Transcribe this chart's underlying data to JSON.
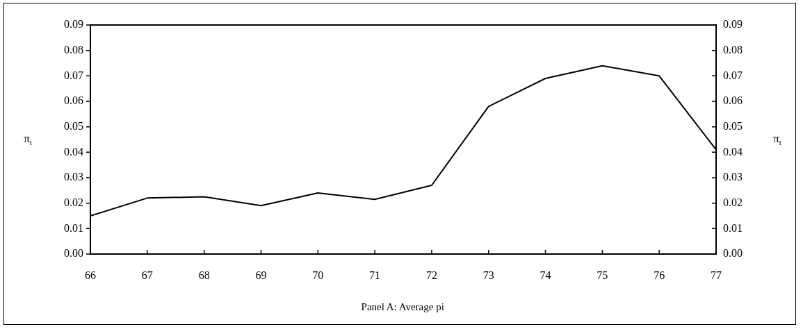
{
  "chart_data": {
    "type": "line",
    "xlabel": "Panel A: Average pi",
    "ylabel": "π$_{t}$",
    "y2label": "π$_{t}$",
    "x": [
      66,
      67,
      68,
      69,
      70,
      71,
      72,
      73,
      74,
      75,
      76,
      77
    ],
    "series": [
      {
        "color": "#000000",
        "values": [
          0.015,
          0.022,
          0.0225,
          0.019,
          0.024,
          0.0215,
          0.027,
          0.058,
          0.069,
          0.074,
          0.07,
          0.041
        ]
      }
    ],
    "xlim": [
      66,
      77
    ],
    "xticks": [
      66,
      67,
      68,
      69,
      70,
      71,
      72,
      73,
      74,
      75,
      76,
      77
    ],
    "ylim": [
      0,
      0.09
    ],
    "yticks": [
      {
        "value": 0,
        "label": "0.00"
      },
      {
        "value": 0.01,
        "label": "0.01"
      },
      {
        "value": 0.02,
        "label": "0.02"
      },
      {
        "value": 0.03,
        "label": "0.03"
      },
      {
        "value": 0.04,
        "label": "0.04"
      },
      {
        "value": 0.05,
        "label": "0.05"
      },
      {
        "value": 0.06,
        "label": "0.06"
      },
      {
        "value": 0.07,
        "label": "0.07"
      },
      {
        "value": 0.08,
        "label": "0.08"
      },
      {
        "value": 0.09,
        "label": "0.09"
      }
    ],
    "y2lim": [
      0,
      0.09
    ],
    "y2ticks": [
      {
        "value": 0,
        "label": "0.00"
      },
      {
        "value": 0.01,
        "label": "0.01"
      },
      {
        "value": 0.02,
        "label": "0.02"
      },
      {
        "value": 0.03,
        "label": "0.03"
      },
      {
        "value": 0.04,
        "label": "0.04"
      },
      {
        "value": 0.05,
        "label": "0.05"
      },
      {
        "value": 0.06,
        "label": "0.06"
      },
      {
        "value": 0.07,
        "label": "0.07"
      },
      {
        "value": 0.08,
        "label": "0.08"
      },
      {
        "value": 0.09,
        "label": "0.09"
      }
    ],
    "grid": false,
    "legend": false,
    "marker": "none",
    "line_style": "solid"
  }
}
